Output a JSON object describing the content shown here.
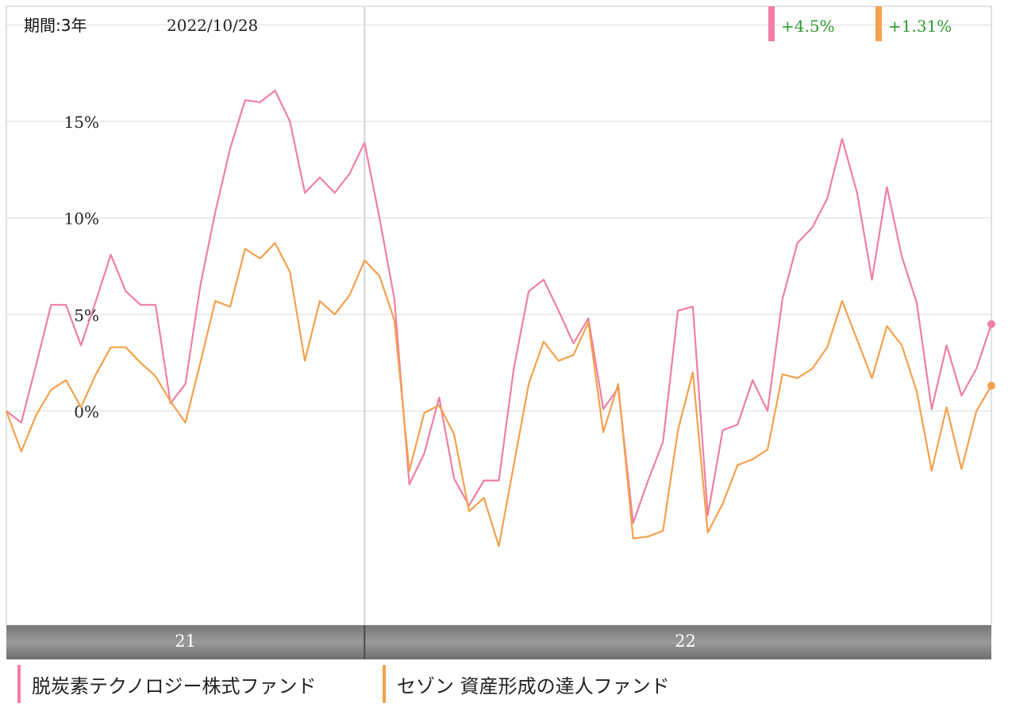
{
  "header": {
    "period_label": "期間:3年",
    "date": "2022/10/28"
  },
  "badges": [
    {
      "value": "+4.5%",
      "color": "#f07fa3"
    },
    {
      "value": "+1.31%",
      "color": "#f5a14d"
    }
  ],
  "legend": [
    {
      "label": "脱炭素テクノロジー株式ファンド",
      "color": "#f07fa3"
    },
    {
      "label": "セゾン 資産形成の達人ファンド",
      "color": "#f5a14d"
    }
  ],
  "colors": {
    "positive_text": "#2e9a2e",
    "timeline_bar": "#8e8e8e",
    "grid": "#e6e6e6"
  },
  "chart_data": {
    "type": "line",
    "yticks": [
      "15%",
      "10%",
      "5%",
      "0%"
    ],
    "ytick_values": [
      15,
      10,
      5,
      0
    ],
    "ylim": [
      -11,
      20.5
    ],
    "xlabels": [
      {
        "label": "21",
        "period": [
          0,
          24
        ]
      },
      {
        "label": "22",
        "period": [
          24,
          67
        ]
      }
    ],
    "divider_at": 24,
    "series": [
      {
        "name": "脱炭素テクノロジー株式ファンド",
        "color": "#f07fa3",
        "values": [
          0,
          -0.6,
          2.4,
          5.5,
          5.5,
          3.4,
          5.7,
          8.1,
          6.2,
          5.5,
          5.5,
          0.4,
          1.4,
          6.5,
          10.3,
          13.6,
          16.1,
          16.0,
          16.6,
          15.0,
          11.3,
          12.1,
          11.3,
          12.3,
          13.9,
          10.0,
          5.8,
          -3.8,
          -2.2,
          0.7,
          -3.5,
          -4.9,
          -3.6,
          -3.6,
          2.2,
          6.2,
          6.8,
          5.2,
          3.5,
          4.8,
          0.1,
          1.2,
          -5.8,
          -3.6,
          -1.6,
          5.2,
          5.4,
          -5.4,
          -1.0,
          -0.7,
          1.6,
          0.0,
          5.8,
          8.7,
          9.5,
          11.0,
          14.1,
          11.3,
          6.8,
          11.6,
          8.0,
          5.6,
          0.1,
          3.4,
          0.8,
          2.2,
          4.5
        ]
      },
      {
        "name": "セゾン 資産形成の達人ファンド",
        "color": "#f5a14d",
        "values": [
          0,
          -2.1,
          -0.2,
          1.1,
          1.6,
          0.2,
          1.9,
          3.3,
          3.3,
          2.5,
          1.8,
          0.5,
          -0.6,
          2.5,
          5.7,
          5.4,
          8.4,
          7.9,
          8.7,
          7.2,
          2.6,
          5.7,
          5.0,
          6.0,
          7.8,
          7.0,
          4.7,
          -3.1,
          -0.1,
          0.3,
          -1.2,
          -5.2,
          -4.5,
          -7.0,
          -2.8,
          1.4,
          3.6,
          2.6,
          2.9,
          4.6,
          -1.1,
          1.4,
          -6.6,
          -6.5,
          -6.2,
          -1.0,
          2.0,
          -6.3,
          -4.8,
          -2.8,
          -2.5,
          -2.0,
          1.9,
          1.7,
          2.2,
          3.3,
          5.7,
          3.7,
          1.7,
          4.4,
          3.4,
          1.0,
          -3.1,
          0.2,
          -3.0,
          0.0,
          1.31
        ]
      }
    ]
  }
}
